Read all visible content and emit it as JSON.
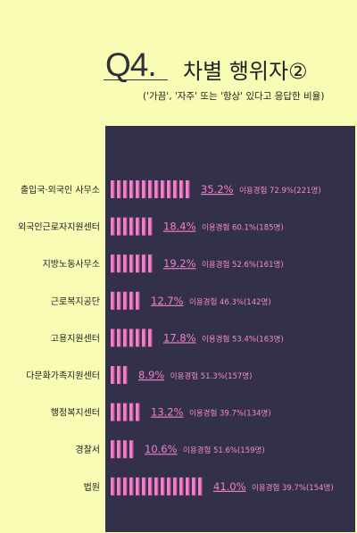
{
  "header": {
    "q_label": "Q4.",
    "title": "차별 행위자②",
    "subtitle": "('가끔', '자주' 또는 '항상' 있다고 응답한 비율)"
  },
  "colors": {
    "background": "#f8fcb4",
    "panel": "#33304a",
    "bar": "#f280c8",
    "bar_dark": "#b34f92",
    "value_text": "#f080c8"
  },
  "chart_data": {
    "type": "bar",
    "orientation": "horizontal",
    "categories": [
      "출입국·외국인 사무소",
      "외국인근로자지원센터",
      "지방노동사무소",
      "근로복지공단",
      "고용지원센터",
      "다문화가족지원센터",
      "행정복지센터",
      "경찰서",
      "법원"
    ],
    "values": [
      35.2,
      18.4,
      19.2,
      12.7,
      17.8,
      8.9,
      13.2,
      10.6,
      41.0
    ],
    "value_labels": [
      "35.2%",
      "18.4%",
      "19.2%",
      "12.7%",
      "17.8%",
      "8.9%",
      "13.2%",
      "10.6%",
      "41.0%"
    ],
    "experience_labels": [
      "이용경험 72.9%(221명)",
      "이용경험 60.1%(185명)",
      "이용경험 52.6%(161명)",
      "이용경험 46.3%(142명)",
      "이용경험 53.4%(163명)",
      "이용경험 51.3%(157명)",
      "이용경험 39.7%(134명)",
      "이용경험 51.6%(159명)",
      "이용경험 39.7%(154명)"
    ],
    "unit": "%"
  }
}
